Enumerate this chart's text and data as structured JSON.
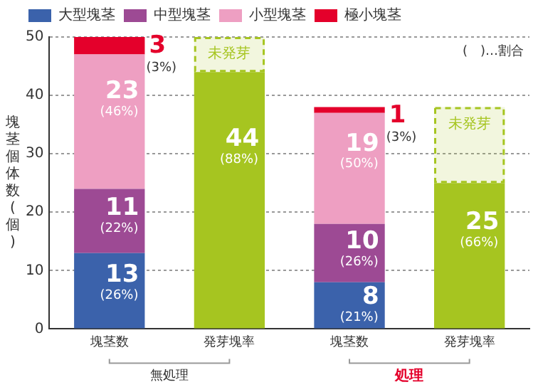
{
  "chart_data": {
    "type": "bar",
    "stacked": true,
    "ylabel": "塊茎個体数(個)",
    "categories": [
      "塊茎数",
      "発芽塊率",
      "塊茎数",
      "発芽塊率"
    ],
    "ylim": [
      0,
      50
    ],
    "yticks": [
      0,
      10,
      20,
      30,
      40,
      50
    ],
    "grid": "y",
    "legend": "top",
    "annotations": [
      "(　)…割合",
      "無処理",
      "処理"
    ],
    "series": [
      {
        "name": "大型塊茎",
        "color": "#3b62ab",
        "values": [
          13,
          null,
          8,
          null
        ],
        "value_labels": [
          "13\n(26%)",
          null,
          "8\n(21%)",
          null
        ]
      },
      {
        "name": "中型塊茎",
        "color": "#9d4a94",
        "values": [
          11,
          null,
          10,
          null
        ],
        "value_labels": [
          "11\n(22%)",
          null,
          "10\n(26%)",
          null
        ]
      },
      {
        "name": "小型塊茎",
        "color": "#ee9fc2",
        "values": [
          23,
          null,
          19,
          null
        ],
        "value_labels": [
          "23\n(46%)",
          null,
          "19\n(50%)",
          null
        ]
      },
      {
        "name": "極小塊茎",
        "color": "#e4002b",
        "values": [
          3,
          null,
          1,
          null
        ],
        "value_labels": [
          "3\n(3%)",
          null,
          "1\n(3%)",
          null
        ]
      },
      {
        "color": "#a6c520",
        "values": [
          null,
          44,
          null,
          25
        ],
        "value_labels": [
          null,
          "44\n(88%)",
          null,
          "25\n(66%)"
        ]
      },
      {
        "name": "未発芽",
        "color": "#a6c520",
        "line_style": "dashed",
        "values": [
          null,
          6,
          null,
          13
        ]
      }
    ]
  }
}
